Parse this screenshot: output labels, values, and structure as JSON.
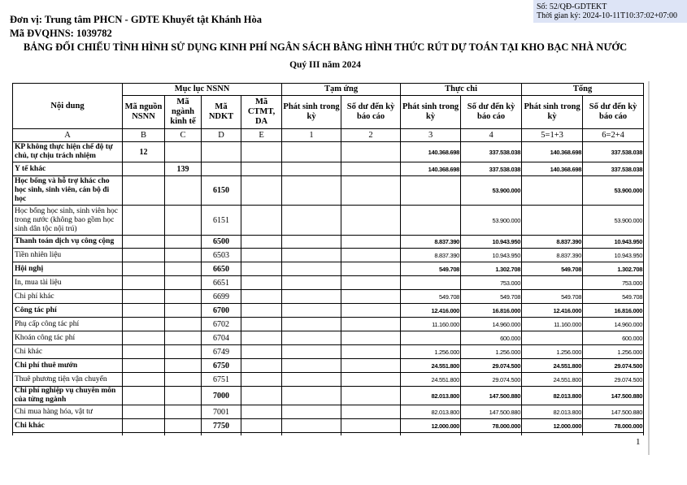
{
  "signature": {
    "so": "Số: 52/QĐ-GDTEKT",
    "time": "Thời gian ký: 2024-10-11T10:37:02+07:00"
  },
  "header": {
    "unit": "Đơn vị: Trung tâm PHCN - GDTE Khuyết tật Khánh Hòa",
    "code": "Mã ĐVQHNS: 1039782",
    "title": "BẢNG ĐỐI CHIẾU TÌNH HÌNH SỬ DỤNG KINH PHÍ NGÂN SÁCH BẰNG HÌNH THỨC RÚT DỰ TOÁN TẠI KHO BẠC NHÀ NƯỚC",
    "period": "Quý III năm 2024"
  },
  "table": {
    "groups": {
      "noi_dung": "Nội dung",
      "muc_luc": "Mục lục NSNN",
      "tam_ung": "Tạm ứng",
      "thuc_chi": "Thực chi",
      "tong": "Tổng"
    },
    "columns": [
      "Mã nguồn NSNN",
      "Mã ngành kinh tế",
      "Mã NDKT",
      "Mã CTMT, DA",
      "Phát sinh trong kỳ",
      "Số dư đến kỳ báo cáo",
      "Phát sinh trong kỳ",
      "Số dư đến kỳ báo cáo",
      "Phát sinh trong kỳ",
      "Số dư đến kỳ báo cáo"
    ],
    "codes": [
      "A",
      "B",
      "C",
      "D",
      "E",
      "1",
      "2",
      "3",
      "4",
      "5=1+3",
      "6=2+4"
    ],
    "rows": [
      {
        "name": "KP không thực hiện chế độ tự chủ, tự chịu trách nhiệm",
        "bold": true,
        "cells": [
          "12",
          "",
          "",
          "",
          "",
          "",
          "140.368.698",
          "337.538.038",
          "140.368.698",
          "337.538.038"
        ]
      },
      {
        "name": "Y tế khác",
        "bold": true,
        "cells": [
          "",
          "139",
          "",
          "",
          "",
          "",
          "140.368.698",
          "337.538.038",
          "140.368.698",
          "337.538.038"
        ]
      },
      {
        "name": "Học bổng và hỗ trợ khác cho học sinh, sinh viên, cán bộ đi học",
        "bold": true,
        "cells": [
          "",
          "",
          "6150",
          "",
          "",
          "",
          "",
          "53.900.000",
          "",
          "53.900.000"
        ]
      },
      {
        "name": "Học bổng học sinh, sinh viên học trong nước (không bao gồm học sinh dân tộc nội trú)",
        "bold": false,
        "cells": [
          "",
          "",
          "6151",
          "",
          "",
          "",
          "",
          "53.900.000",
          "",
          "53.900.000"
        ]
      },
      {
        "name": "Thanh toán dịch vụ công cộng",
        "bold": true,
        "cells": [
          "",
          "",
          "6500",
          "",
          "",
          "",
          "8.837.390",
          "10.943.950",
          "8.837.390",
          "10.943.950"
        ]
      },
      {
        "name": "Tiền nhiên liệu",
        "bold": false,
        "cells": [
          "",
          "",
          "6503",
          "",
          "",
          "",
          "8.837.390",
          "10.943.950",
          "8.837.390",
          "10.943.950"
        ]
      },
      {
        "name": "Hội nghị",
        "bold": true,
        "cells": [
          "",
          "",
          "6650",
          "",
          "",
          "",
          "549.708",
          "1.302.708",
          "549.708",
          "1.302.708"
        ]
      },
      {
        "name": "In, mua tài liệu",
        "bold": false,
        "cells": [
          "",
          "",
          "6651",
          "",
          "",
          "",
          "",
          "753.000",
          "",
          "753.000"
        ]
      },
      {
        "name": "Chi phí khác",
        "bold": false,
        "cells": [
          "",
          "",
          "6699",
          "",
          "",
          "",
          "549.708",
          "549.708",
          "549.708",
          "549.708"
        ]
      },
      {
        "name": "Công tác phí",
        "bold": true,
        "cells": [
          "",
          "",
          "6700",
          "",
          "",
          "",
          "12.416.000",
          "16.816.000",
          "12.416.000",
          "16.816.000"
        ]
      },
      {
        "name": "Phụ cấp công tác phí",
        "bold": false,
        "cells": [
          "",
          "",
          "6702",
          "",
          "",
          "",
          "11.160.000",
          "14.960.000",
          "11.160.000",
          "14.960.000"
        ]
      },
      {
        "name": "Khoán công tác phí",
        "bold": false,
        "cells": [
          "",
          "",
          "6704",
          "",
          "",
          "",
          "",
          "600.000",
          "",
          "600.000"
        ]
      },
      {
        "name": "Chi khác",
        "bold": false,
        "cells": [
          "",
          "",
          "6749",
          "",
          "",
          "",
          "1.256.000",
          "1.256.000",
          "1.256.000",
          "1.256.000"
        ]
      },
      {
        "name": "Chi phí thuê mướn",
        "bold": true,
        "cells": [
          "",
          "",
          "6750",
          "",
          "",
          "",
          "24.551.800",
          "29.074.500",
          "24.551.800",
          "29.074.500"
        ]
      },
      {
        "name": "Thuê phương tiện vận chuyển",
        "bold": false,
        "cells": [
          "",
          "",
          "6751",
          "",
          "",
          "",
          "24.551.800",
          "29.074.500",
          "24.551.800",
          "29.074.500"
        ]
      },
      {
        "name": "Chi phí nghiệp vụ chuyên môn của từng ngành",
        "bold": true,
        "cells": [
          "",
          "",
          "7000",
          "",
          "",
          "",
          "82.013.800",
          "147.500.880",
          "82.013.800",
          "147.500.880"
        ]
      },
      {
        "name": "Chi mua hàng hóa, vật tư",
        "bold": false,
        "cells": [
          "",
          "",
          "7001",
          "",
          "",
          "",
          "82.013.800",
          "147.500.880",
          "82.013.800",
          "147.500.880"
        ]
      },
      {
        "name": "Chi khác",
        "bold": true,
        "cells": [
          "",
          "",
          "7750",
          "",
          "",
          "",
          "12.000.000",
          "78.000.000",
          "12.000.000",
          "78.000.000"
        ]
      }
    ]
  },
  "page_number": "1"
}
